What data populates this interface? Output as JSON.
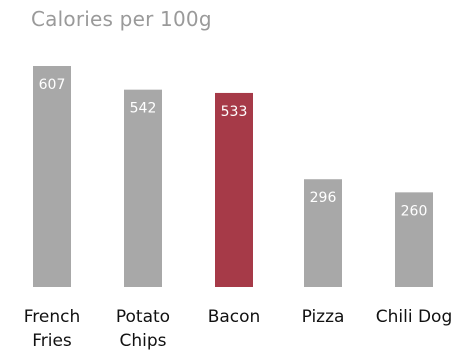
{
  "chart_data": {
    "type": "bar",
    "title": "Calories per 100g",
    "categories": [
      "French Fries",
      "Potato Chips",
      "Bacon",
      "Pizza",
      "Chili Dog"
    ],
    "category_label_lines": [
      [
        "French",
        "Fries"
      ],
      [
        "Potato",
        "Chips"
      ],
      [
        "Bacon"
      ],
      [
        "Pizza"
      ],
      [
        "Chili Dog"
      ]
    ],
    "values": [
      607,
      542,
      533,
      296,
      260
    ],
    "value_labels": [
      "607",
      "542",
      "533",
      "296",
      "260"
    ],
    "highlight_index": 2,
    "xlabel": "",
    "ylabel": "",
    "ylim": [
      0,
      607
    ],
    "grid": false,
    "legend": "none",
    "colors": {
      "bar": "#a8a8a8",
      "highlight": "#a63a48",
      "value_label": "#ffffff",
      "category_label": "#111111",
      "title": "#9a9a9a"
    }
  }
}
